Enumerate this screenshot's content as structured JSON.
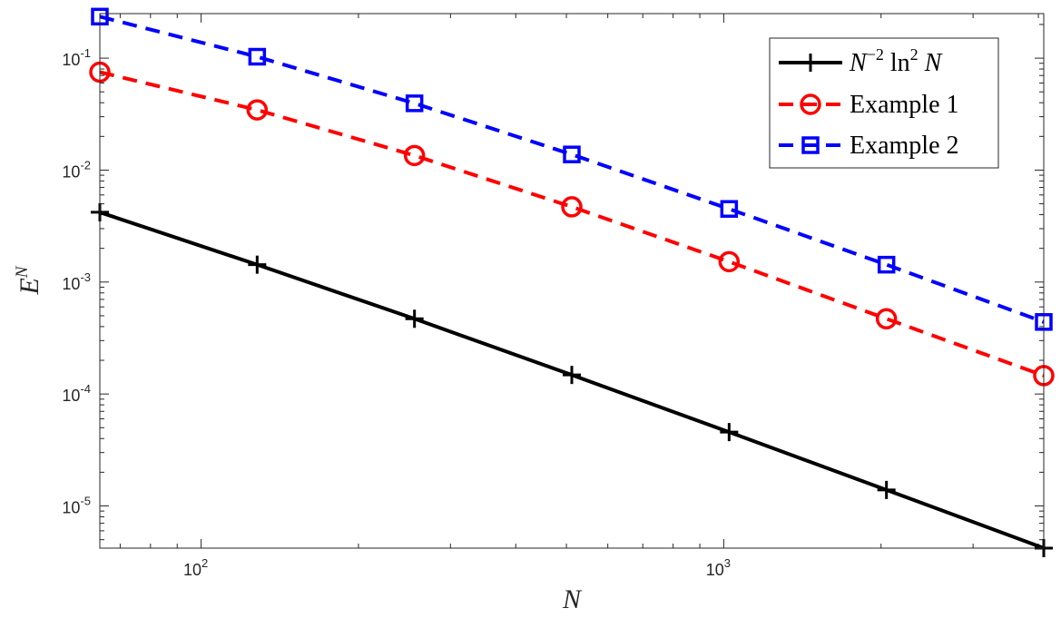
{
  "chart_data": {
    "type": "line",
    "x_scale": "log",
    "y_scale": "log",
    "xlabel": "N",
    "ylabel": "E",
    "ylabel_superscript": "N",
    "xlim": [
      64,
      4096
    ],
    "ylim": [
      4.2e-06,
      0.25
    ],
    "x_major_ticks": [
      {
        "value": 100,
        "base": "10",
        "exp": "2"
      },
      {
        "value": 1000,
        "base": "10",
        "exp": "3"
      }
    ],
    "y_major_ticks": [
      {
        "value": 0.1,
        "base": "10",
        "exp": "-1"
      },
      {
        "value": 0.01,
        "base": "10",
        "exp": "-2"
      },
      {
        "value": 0.001,
        "base": "10",
        "exp": "-3"
      },
      {
        "value": 0.0001,
        "base": "10",
        "exp": "-4"
      },
      {
        "value": 1e-05,
        "base": "10",
        "exp": "-5"
      }
    ],
    "x": [
      64,
      128,
      256,
      512,
      1024,
      2048,
      4096
    ],
    "series": [
      {
        "name": "N⁻² ln² N",
        "color": "#000000",
        "marker": "plus",
        "style": "solid",
        "values": [
          0.0042,
          0.00143,
          0.00047,
          0.000148,
          4.57e-05,
          1.39e-05,
          4.2e-06
        ]
      },
      {
        "name": "Example 1",
        "color": "#ff0000",
        "marker": "circle",
        "style": "dashed",
        "values": [
          0.075,
          0.0345,
          0.0135,
          0.0047,
          0.00152,
          0.00047,
          0.000146
        ]
      },
      {
        "name": "Example 2",
        "color": "#0000ff",
        "marker": "square",
        "style": "dashed",
        "values": [
          0.235,
          0.103,
          0.0395,
          0.0138,
          0.0045,
          0.00143,
          0.00044
        ]
      }
    ],
    "legend": {
      "position": "top-right",
      "entries": [
        {
          "base": "N",
          "sup1": "−2",
          "mid": " ln",
          "sup2": "2",
          "tail": " N"
        },
        {
          "text": "Example 1"
        },
        {
          "text": "Example 2"
        }
      ]
    },
    "grid": false,
    "box": true
  }
}
